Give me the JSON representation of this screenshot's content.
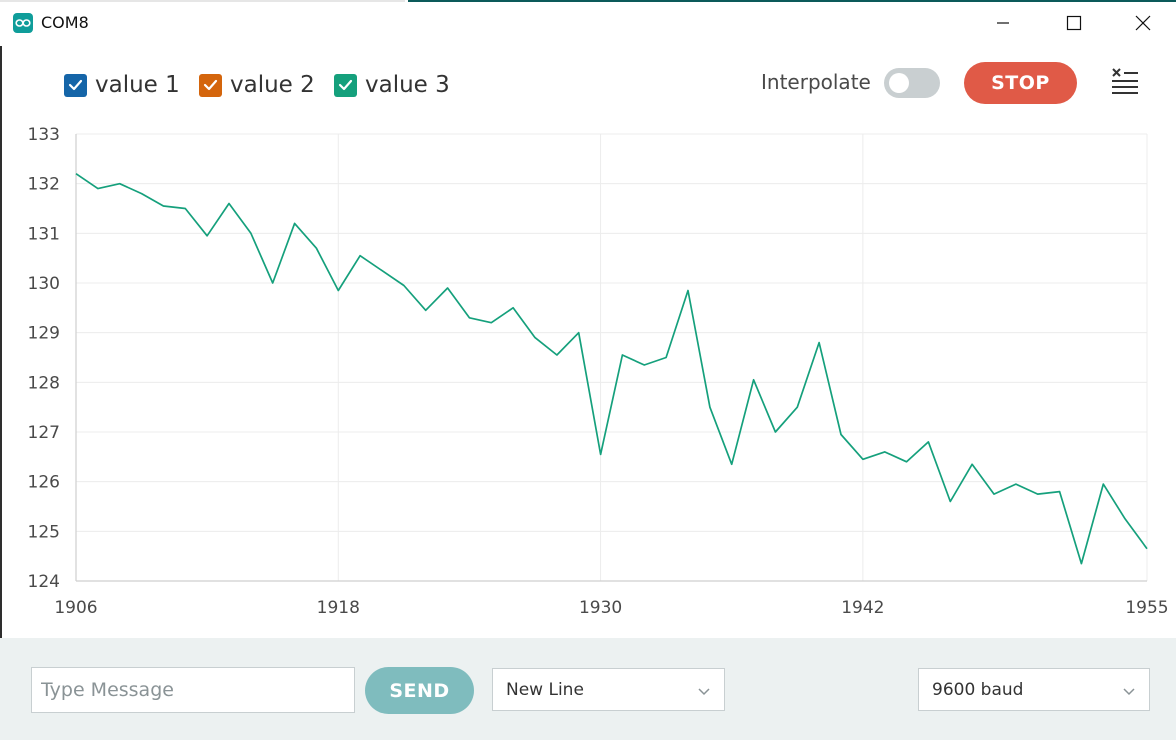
{
  "window": {
    "title": "COM8",
    "icon": "arduino-infinity-icon",
    "controls": [
      "minimize-icon",
      "maximize-icon",
      "close-icon"
    ]
  },
  "toolbar": {
    "legend": [
      {
        "label": "value 1",
        "color": "#1565a8",
        "checked": true
      },
      {
        "label": "value 2",
        "color": "#d4650c",
        "checked": true
      },
      {
        "label": "value 3",
        "color": "#15a07c",
        "checked": true
      }
    ],
    "interpolate_label": "Interpolate",
    "interpolate_on": false,
    "stop_label": "STOP",
    "clear_icon": "clear-list-icon"
  },
  "bottom": {
    "message_placeholder": "Type Message",
    "message_value": "",
    "send_label": "SEND",
    "line_ending": "New Line",
    "baud_rate": "9600 baud"
  },
  "chart_data": {
    "type": "line",
    "title": "",
    "xlabel": "",
    "ylabel": "",
    "xlim": [
      1906,
      1955
    ],
    "ylim": [
      124,
      133
    ],
    "x_ticks": [
      1906,
      1918,
      1930,
      1942,
      1955
    ],
    "y_ticks": [
      124,
      125,
      126,
      127,
      128,
      129,
      130,
      131,
      132,
      133
    ],
    "grid": true,
    "series": [
      {
        "name": "value 3",
        "color": "#15a07c",
        "x": [
          1906,
          1907,
          1908,
          1909,
          1910,
          1911,
          1912,
          1913,
          1914,
          1915,
          1916,
          1917,
          1918,
          1919,
          1920,
          1921,
          1922,
          1923,
          1924,
          1925,
          1926,
          1927,
          1928,
          1929,
          1930,
          1931,
          1932,
          1933,
          1934,
          1935,
          1936,
          1937,
          1938,
          1939,
          1940,
          1941,
          1942,
          1943,
          1944,
          1945,
          1946,
          1947,
          1948,
          1949,
          1950,
          1951,
          1952,
          1953,
          1954,
          1955
        ],
        "y": [
          132.2,
          131.9,
          132.0,
          131.8,
          131.55,
          131.5,
          130.95,
          131.6,
          131.0,
          130.0,
          131.2,
          130.7,
          129.85,
          130.55,
          130.25,
          129.95,
          129.45,
          129.9,
          129.3,
          129.2,
          129.5,
          128.9,
          128.55,
          129.0,
          126.55,
          128.55,
          128.35,
          128.5,
          129.85,
          127.5,
          126.35,
          128.05,
          127.0,
          127.5,
          128.8,
          126.95,
          126.45,
          126.6,
          126.4,
          126.8,
          125.6,
          126.35,
          125.75,
          125.95,
          125.75,
          125.8,
          124.35,
          125.95,
          125.25,
          124.65
        ]
      }
    ]
  }
}
